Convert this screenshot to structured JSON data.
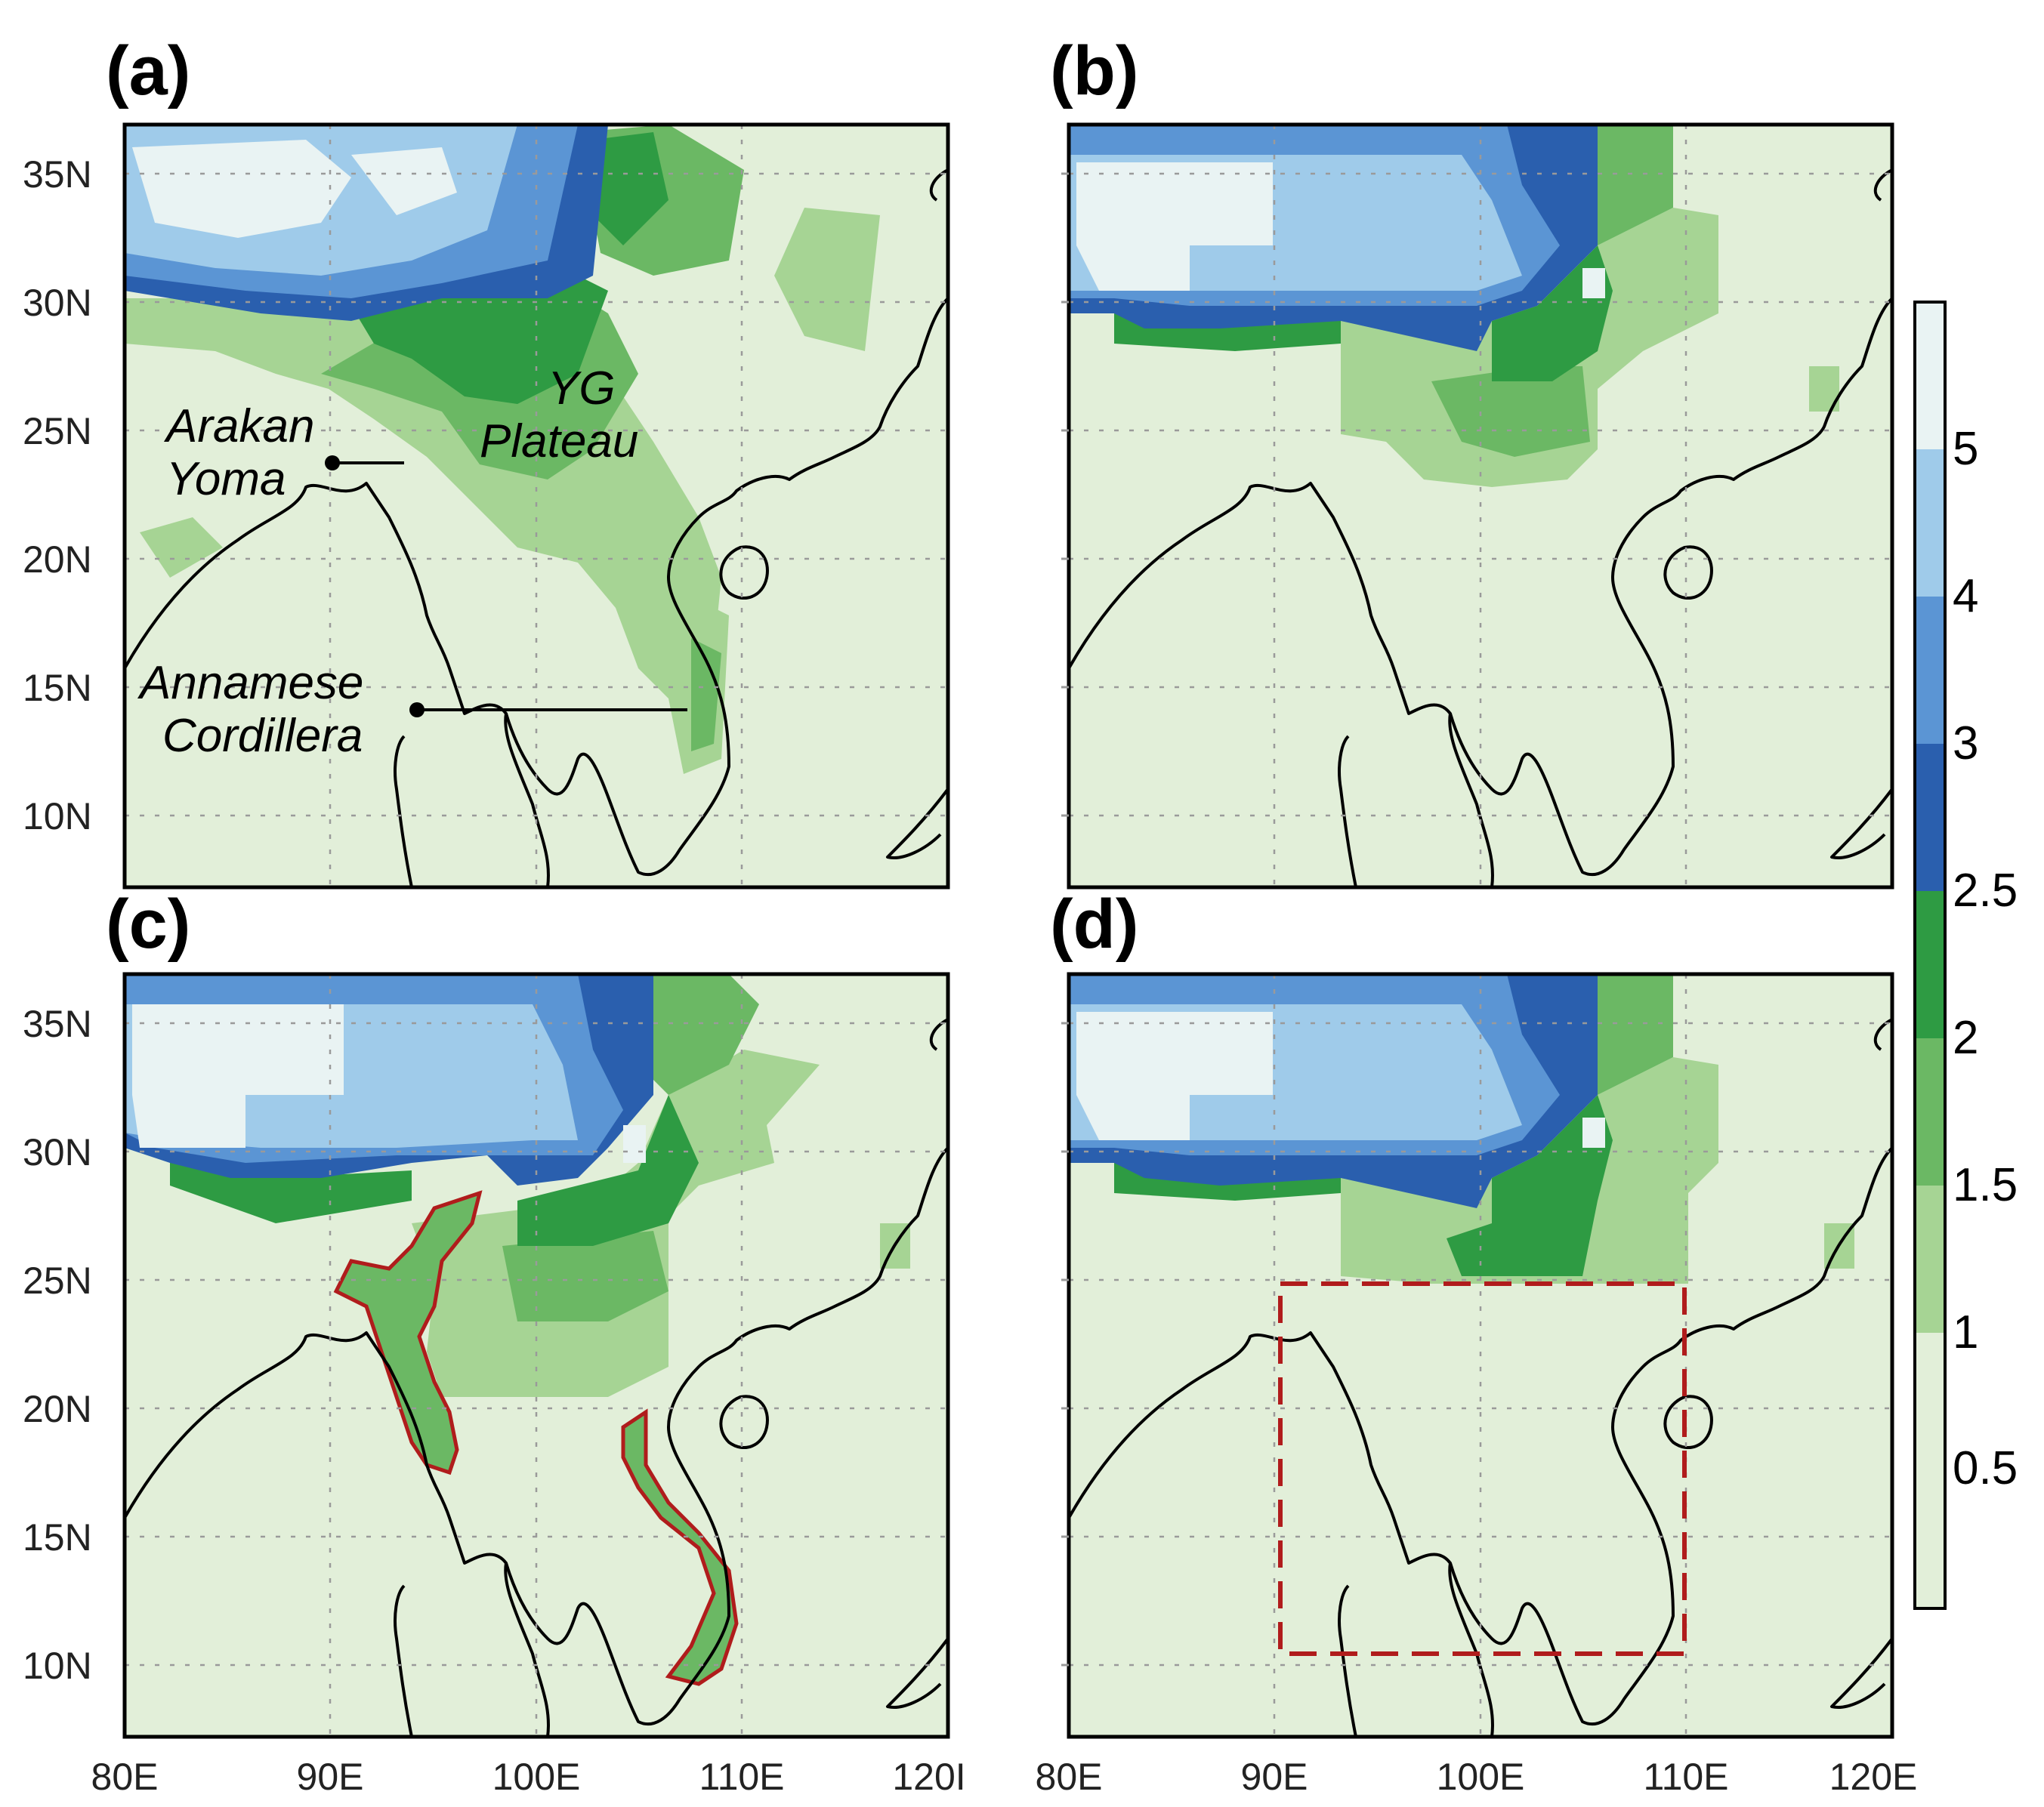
{
  "panels": [
    {
      "label": "(a)"
    },
    {
      "label": "(b)"
    },
    {
      "label": "(c)"
    },
    {
      "label": "(d)"
    }
  ],
  "lat_ticks": [
    "35N",
    "30N",
    "25N",
    "20N",
    "15N",
    "10N"
  ],
  "lon_ticks_left": [
    "80E",
    "90E",
    "100E",
    "110E",
    "120I"
  ],
  "lon_ticks_right": [
    "80E",
    "90E",
    "100E",
    "110E",
    "120E"
  ],
  "colorbar": {
    "ticks": [
      "5",
      "4",
      "3",
      "2.5",
      "2",
      "1.5",
      "1",
      "0.5"
    ],
    "colors": [
      "#e9f3f3",
      "#9fcbea",
      "#5b95d4",
      "#2a5fae",
      "#2e9b43",
      "#6bb864",
      "#a6d494",
      "#e2efd9"
    ]
  },
  "annotations": {
    "arakan_line1": "Arakan",
    "arakan_line2": "Yoma",
    "yg_line1": "YG",
    "yg_line2": "Plateau",
    "annamese_line1": "Annamese",
    "annamese_line2": "Cordillera"
  },
  "colors": {
    "land_low": "#e2efd9",
    "green_light": "#a6d494",
    "green_mid": "#6bb864",
    "green_dark": "#2e9b43",
    "blue_dark": "#2a5fae",
    "blue_mid": "#5b95d4",
    "blue_light": "#9fcbea",
    "white_high": "#e9f3f3",
    "highlight": "#b01c1c"
  }
}
